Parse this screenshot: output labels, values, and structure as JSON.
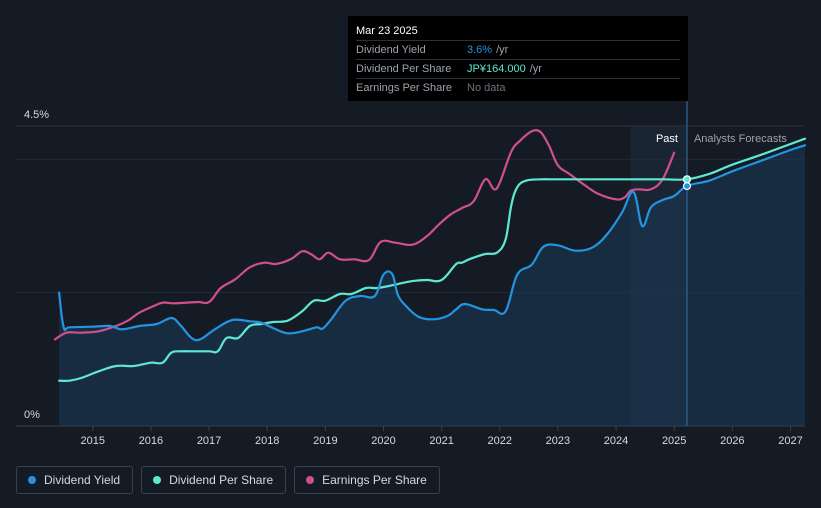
{
  "tooltip": {
    "date": "Mar 23 2025",
    "rows": [
      {
        "label": "Dividend Yield",
        "value": "3.6%",
        "unit": "/yr"
      },
      {
        "label": "Dividend Per Share",
        "value": "JP¥164.000",
        "unit": "/yr"
      },
      {
        "label": "Earnings Per Share",
        "value": "No data",
        "unit": ""
      }
    ]
  },
  "colors": {
    "background": "#151b24",
    "dividend_yield": "#2394e0",
    "dividend_per_share": "#5ee8d3",
    "earnings_per_share": "#d0508f",
    "tooltip_yield_value": "#2394e0",
    "tooltip_dps_value": "#5ee8d3",
    "tooltip_nodata": "#6b737d"
  },
  "legend": [
    {
      "label": "Dividend Yield",
      "color": "#2394e0"
    },
    {
      "label": "Dividend Per Share",
      "color": "#5ee8d3"
    },
    {
      "label": "Earnings Per Share",
      "color": "#d0508f"
    }
  ],
  "chart_data": {
    "type": "line",
    "y_axis_labels": [
      "4.5%",
      "0%"
    ],
    "ylim": [
      0,
      4.5
    ],
    "xlim": [
      2014.35,
      2027.25
    ],
    "x_tick_labels": [
      "2015",
      "2016",
      "2017",
      "2018",
      "2019",
      "2020",
      "2021",
      "2022",
      "2023",
      "2024",
      "2025",
      "2026",
      "2027"
    ],
    "x_ticks": [
      2015,
      2016,
      2017,
      2018,
      2019,
      2020,
      2021,
      2022,
      2023,
      2024,
      2025,
      2026,
      2027
    ],
    "past_label": "Past",
    "forecast_label": "Analysts Forecasts",
    "forecast_start": 2024.25,
    "today": 2025.22,
    "grid": true,
    "legend_position": "bottom-left",
    "series": [
      {
        "name": "Dividend Yield",
        "unit": "%",
        "x": [
          2014.42,
          2014.5,
          2014.6,
          2015.0,
          2015.3,
          2015.5,
          2015.8,
          2016.1,
          2016.35,
          2016.5,
          2016.7,
          2016.85,
          2017.1,
          2017.4,
          2017.7,
          2017.9,
          2018.1,
          2018.35,
          2018.6,
          2018.85,
          2018.95,
          2019.1,
          2019.35,
          2019.6,
          2019.85,
          2020.0,
          2020.15,
          2020.25,
          2020.4,
          2020.6,
          2020.85,
          2021.1,
          2021.25,
          2021.4,
          2021.7,
          2021.9,
          2022.1,
          2022.3,
          2022.55,
          2022.75,
          2023.0,
          2023.3,
          2023.6,
          2023.85,
          2024.1,
          2024.3,
          2024.45,
          2024.6,
          2024.8,
          2025.0,
          2025.22,
          2025.6,
          2026.0,
          2026.5,
          2027.0,
          2027.25
        ],
        "values": [
          2.0,
          1.48,
          1.48,
          1.49,
          1.5,
          1.45,
          1.5,
          1.53,
          1.62,
          1.52,
          1.32,
          1.3,
          1.45,
          1.59,
          1.57,
          1.55,
          1.47,
          1.39,
          1.42,
          1.48,
          1.46,
          1.6,
          1.88,
          1.95,
          1.95,
          2.27,
          2.28,
          1.96,
          1.79,
          1.64,
          1.6,
          1.65,
          1.75,
          1.83,
          1.75,
          1.74,
          1.72,
          2.27,
          2.42,
          2.69,
          2.71,
          2.63,
          2.68,
          2.88,
          3.2,
          3.51,
          3.0,
          3.28,
          3.39,
          3.45,
          3.6,
          3.68,
          3.82,
          3.98,
          4.14,
          4.21
        ]
      },
      {
        "name": "Dividend Per Share",
        "unit": "relative",
        "x": [
          2014.42,
          2014.6,
          2014.8,
          2015.1,
          2015.4,
          2015.7,
          2016.0,
          2016.2,
          2016.35,
          2016.5,
          2016.7,
          2017.0,
          2017.15,
          2017.3,
          2017.5,
          2017.7,
          2017.9,
          2018.1,
          2018.35,
          2018.6,
          2018.8,
          2019.0,
          2019.25,
          2019.45,
          2019.7,
          2019.9,
          2020.2,
          2020.35,
          2020.55,
          2020.75,
          2021.0,
          2021.25,
          2021.35,
          2021.5,
          2021.75,
          2021.95,
          2022.1,
          2022.2,
          2022.3,
          2022.45,
          2022.7,
          2022.9,
          2023.3,
          2023.8,
          2024.25,
          2024.8,
          2025.22,
          2025.6,
          2026.0,
          2026.5,
          2027.0,
          2027.25
        ],
        "values": [
          0.68,
          0.68,
          0.72,
          0.82,
          0.9,
          0.9,
          0.95,
          0.95,
          1.1,
          1.12,
          1.12,
          1.12,
          1.12,
          1.32,
          1.32,
          1.5,
          1.53,
          1.56,
          1.58,
          1.72,
          1.88,
          1.88,
          1.98,
          1.98,
          2.07,
          2.07,
          2.12,
          2.15,
          2.18,
          2.19,
          2.19,
          2.43,
          2.45,
          2.51,
          2.58,
          2.6,
          2.8,
          3.32,
          3.58,
          3.68,
          3.7,
          3.7,
          3.7,
          3.7,
          3.7,
          3.7,
          3.7,
          3.78,
          3.92,
          4.07,
          4.23,
          4.31
        ]
      },
      {
        "name": "Earnings Per Share",
        "unit": "relative",
        "x": [
          2014.35,
          2014.55,
          2014.8,
          2015.1,
          2015.4,
          2015.6,
          2015.8,
          2016.0,
          2016.2,
          2016.4,
          2016.8,
          2017.0,
          2017.2,
          2017.45,
          2017.7,
          2017.95,
          2018.15,
          2018.4,
          2018.6,
          2018.75,
          2018.9,
          2019.05,
          2019.25,
          2019.5,
          2019.75,
          2019.95,
          2020.2,
          2020.5,
          2020.75,
          2020.95,
          2021.15,
          2021.35,
          2021.55,
          2021.75,
          2021.9,
          2022.0,
          2022.2,
          2022.35,
          2022.55,
          2022.7,
          2022.85,
          2023.0,
          2023.2,
          2023.45,
          2023.7,
          2024.0,
          2024.15,
          2024.25,
          2024.4,
          2024.6,
          2024.8,
          2025.0
        ],
        "values": [
          1.3,
          1.4,
          1.4,
          1.42,
          1.5,
          1.58,
          1.7,
          1.78,
          1.85,
          1.84,
          1.86,
          1.86,
          2.07,
          2.2,
          2.38,
          2.45,
          2.43,
          2.5,
          2.62,
          2.58,
          2.5,
          2.6,
          2.5,
          2.5,
          2.49,
          2.76,
          2.75,
          2.72,
          2.85,
          3.02,
          3.17,
          3.27,
          3.37,
          3.7,
          3.55,
          3.65,
          4.12,
          4.28,
          4.42,
          4.41,
          4.2,
          3.91,
          3.78,
          3.62,
          3.48,
          3.4,
          3.43,
          3.53,
          3.55,
          3.55,
          3.7,
          4.1
        ]
      }
    ]
  }
}
